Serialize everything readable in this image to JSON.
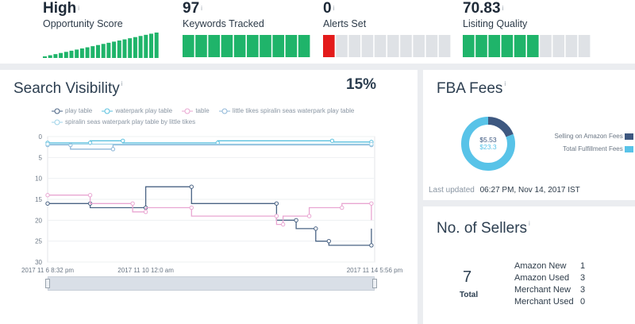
{
  "metrics": [
    {
      "value": "High",
      "label": "Opportunity Score",
      "info": "i"
    },
    {
      "value": "97",
      "label": "Keywords Tracked",
      "info": "i"
    },
    {
      "value": "0",
      "label": "Alerts Set",
      "info": "i"
    },
    {
      "value": "70.83",
      "label": "Lisiting Quality",
      "info": "i"
    }
  ],
  "opportunity_bars_filled": 1.0,
  "keywords_tracked_fraction": 1.0,
  "alerts_fraction": 0.1,
  "listing_quality_fraction": 0.58,
  "search_visibility": {
    "title": "Search Visibility",
    "info": "i",
    "percent": "15%",
    "chart_data": {
      "type": "line",
      "ylim": [
        0,
        30
      ],
      "yticks": [
        "0",
        "5",
        "10",
        "15",
        "20",
        "25",
        "30"
      ],
      "xticks": [
        "2017 11 6 8:32 pm",
        "2017 11 10 12:0 am",
        "2017 11 14 5:56 pm"
      ],
      "series": [
        {
          "name": "play table",
          "color": "#4a6384",
          "values": [
            [
              0,
              16
            ],
            [
              0.13,
              16
            ],
            [
              0.13,
              17
            ],
            [
              0.3,
              17
            ],
            [
              0.3,
              12
            ],
            [
              0.44,
              12
            ],
            [
              0.44,
              16
            ],
            [
              0.7,
              16
            ],
            [
              0.7,
              20
            ],
            [
              0.76,
              20
            ],
            [
              0.76,
              22
            ],
            [
              0.82,
              22
            ],
            [
              0.82,
              25
            ],
            [
              0.86,
              25
            ],
            [
              0.86,
              26
            ],
            [
              0.99,
              26
            ],
            [
              0.99,
              22
            ]
          ]
        },
        {
          "name": "waterpark play table",
          "color": "#5bc1df",
          "values": [
            [
              0,
              1.5
            ],
            [
              0.13,
              1.5
            ],
            [
              0.13,
              1
            ],
            [
              0.23,
              1
            ],
            [
              0.23,
              1.5
            ],
            [
              0.52,
              1.5
            ],
            [
              0.52,
              1
            ],
            [
              0.87,
              1
            ],
            [
              0.87,
              1.3
            ],
            [
              0.99,
              1.3
            ]
          ]
        },
        {
          "name": "table",
          "color": "#e9a6d2",
          "values": [
            [
              0,
              14
            ],
            [
              0.13,
              14
            ],
            [
              0.13,
              16
            ],
            [
              0.26,
              16
            ],
            [
              0.26,
              18
            ],
            [
              0.3,
              18
            ],
            [
              0.3,
              17
            ],
            [
              0.44,
              17
            ],
            [
              0.44,
              19
            ],
            [
              0.7,
              19
            ],
            [
              0.7,
              21
            ],
            [
              0.72,
              21
            ],
            [
              0.72,
              19
            ],
            [
              0.8,
              19
            ],
            [
              0.8,
              17
            ],
            [
              0.9,
              17
            ],
            [
              0.9,
              16
            ],
            [
              0.99,
              16
            ],
            [
              0.99,
              20
            ]
          ]
        },
        {
          "name": "little tikes spiralin seas waterpark play table",
          "color": "#8fb7d8",
          "values": [
            [
              0,
              2
            ],
            [
              0.07,
              2
            ],
            [
              0.07,
              3
            ],
            [
              0.2,
              3
            ],
            [
              0.2,
              2
            ],
            [
              0.99,
              2
            ]
          ]
        },
        {
          "name": "spiralin seas waterpark play table by little tikes",
          "color": "#9fd3e8",
          "values": [
            [
              0,
              1.8
            ],
            [
              0.99,
              1.8
            ]
          ]
        }
      ]
    }
  },
  "fba_fees": {
    "title": "FBA Fees",
    "info": "i",
    "amount_selling": "$5.53",
    "amount_total": "$23.3",
    "legend": [
      {
        "label": "Selling on Amazon Fees",
        "color": "#3e5880"
      },
      {
        "label": "Total Fulfillment Fees",
        "color": "#58c3e8"
      }
    ],
    "chart_data": {
      "type": "pie",
      "values": [
        5.53,
        23.3
      ],
      "colors": [
        "#3e5880",
        "#58c3e8"
      ]
    },
    "last_updated_label": "Last updated",
    "last_updated_value": "06:27 PM, Nov 14, 2017 IST"
  },
  "sellers": {
    "title": "No. of Sellers",
    "info": "i",
    "total": "7",
    "total_label": "Total",
    "rows": [
      {
        "label": "Amazon New",
        "value": "1"
      },
      {
        "label": "Amazon Used",
        "value": "3"
      },
      {
        "label": "Merchant New",
        "value": "3"
      },
      {
        "label": "Merchant Used",
        "value": "0"
      }
    ]
  }
}
